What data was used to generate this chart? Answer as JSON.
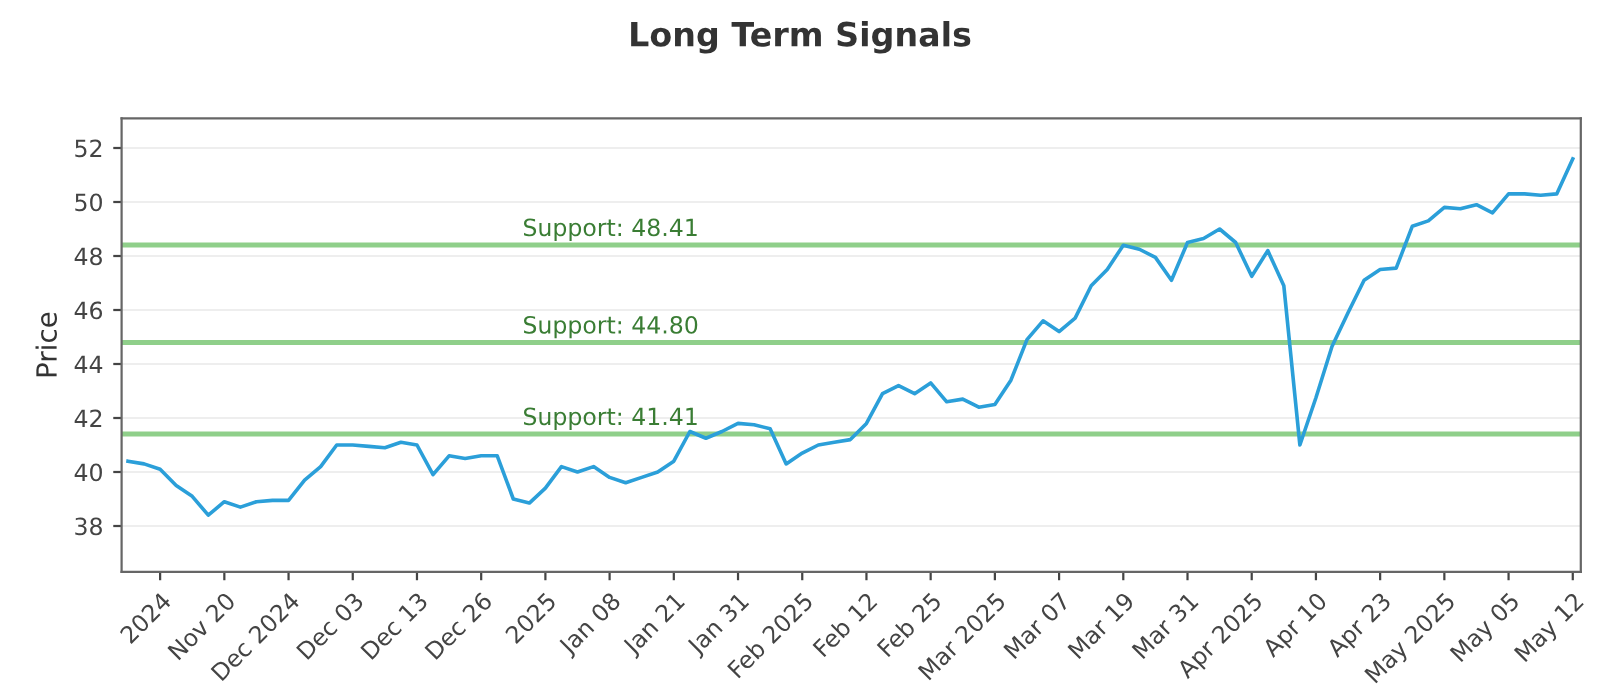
{
  "chart_data": {
    "type": "line",
    "title": "Long Term Signals",
    "ylabel": "Price",
    "categories": [
      null,
      null,
      "2024",
      null,
      null,
      null,
      "Nov 20",
      null,
      null,
      null,
      "Dec 2024",
      null,
      null,
      null,
      "Dec 03",
      null,
      null,
      null,
      "Dec 13",
      null,
      null,
      null,
      "Dec 26",
      null,
      null,
      null,
      "2025",
      null,
      null,
      null,
      "Jan 08",
      null,
      null,
      null,
      "Jan 21",
      null,
      null,
      null,
      "Jan 31",
      null,
      null,
      null,
      "Feb 2025",
      null,
      null,
      null,
      "Feb 12",
      null,
      null,
      null,
      "Feb 25",
      null,
      null,
      null,
      "Mar 2025",
      null,
      null,
      null,
      "Mar 07",
      null,
      null,
      null,
      "Mar 19",
      null,
      null,
      null,
      "Mar 31",
      null,
      null,
      null,
      "Apr 2025",
      null,
      null,
      null,
      "Apr 10",
      null,
      null,
      null,
      "Apr 23",
      null,
      null,
      null,
      "May 2025",
      null,
      null,
      null,
      "May 05",
      null,
      null,
      null,
      "May 12"
    ],
    "series": [
      {
        "color": "#2b9fd9",
        "values": [
          40.4,
          40.3,
          40.1,
          39.5,
          39.1,
          38.4,
          38.9,
          38.7,
          38.9,
          38.95,
          38.95,
          39.7,
          40.2,
          41.0,
          41.0,
          40.95,
          40.9,
          41.1,
          41.0,
          39.9,
          40.6,
          40.5,
          40.6,
          40.6,
          39.0,
          38.85,
          39.4,
          40.2,
          40.0,
          40.2,
          39.8,
          39.6,
          39.8,
          40.0,
          40.4,
          41.5,
          41.25,
          41.5,
          41.8,
          41.75,
          41.6,
          40.3,
          40.7,
          41.0,
          41.1,
          41.2,
          41.8,
          42.9,
          43.2,
          42.9,
          43.3,
          42.6,
          42.7,
          42.4,
          42.5,
          43.4,
          44.9,
          45.6,
          45.2,
          45.7,
          46.9,
          47.5,
          48.4,
          48.25,
          47.95,
          47.1,
          48.5,
          48.65,
          49.0,
          48.5,
          47.25,
          48.2,
          46.9,
          41.0,
          42.75,
          44.65,
          45.9,
          47.1,
          47.5,
          47.55,
          49.1,
          49.3,
          49.8,
          49.75,
          49.9,
          49.6,
          50.3,
          50.3,
          50.25,
          50.3,
          51.6
        ]
      }
    ],
    "ylim": [
      36.3,
      53.1
    ],
    "yticks": [
      38,
      40,
      42,
      44,
      46,
      48,
      50,
      52
    ],
    "grid": "y",
    "marker": "none",
    "line_style": "solid",
    "ref_lines": [
      {
        "axis": "y",
        "value": 48.41,
        "label": "Support: 48.41",
        "color": "#8fcf8a"
      },
      {
        "axis": "y",
        "value": 44.8,
        "label": "Support: 44.80",
        "color": "#8fcf8a"
      },
      {
        "axis": "y",
        "value": 41.41,
        "label": "Support: 41.41",
        "color": "#8fcf8a"
      }
    ]
  }
}
